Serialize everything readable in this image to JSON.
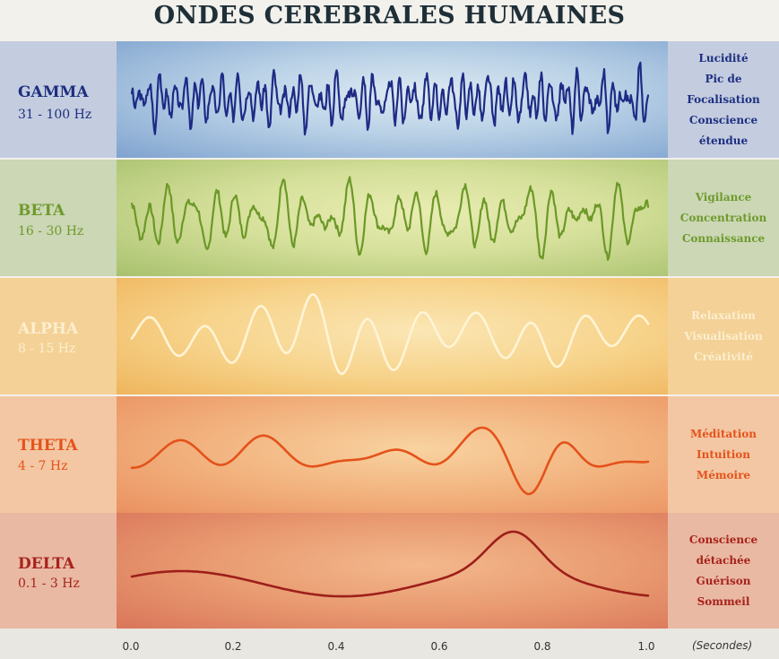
{
  "title": "ONDES CEREBRALES HUMAINES",
  "bands": [
    {
      "name": "GAMMA",
      "freq": "31 - 100 Hz",
      "traits": [
        "Lucidité",
        "Pic de",
        "Focalisation",
        "Conscience",
        "étendue"
      ],
      "color": "#1c2f80",
      "wave_color": "#1e2b85",
      "amp": 0.75,
      "seed": 3
    },
    {
      "name": "BETA",
      "freq": "16 - 30 Hz",
      "traits": [
        "Vigilance",
        "Concentration",
        "Connaissance"
      ],
      "color": "#6f9a2c",
      "wave_color": "#6c9828",
      "amp": 0.85,
      "seed": 7
    },
    {
      "name": "ALPHA",
      "freq": "8 - 15 Hz",
      "traits": [
        "Relaxation",
        "Visualisation",
        "Créativité"
      ],
      "color": "#fcefd0",
      "wave_color": "#fff4d6",
      "amp": 0.85,
      "seed": 11
    },
    {
      "name": "THETA",
      "freq": "4 - 7 Hz",
      "traits": [
        "Méditation",
        "Intuition",
        "Mémoire"
      ],
      "color": "#e5531c",
      "wave_color": "#e4521a",
      "amp": 0.8,
      "seed": 5
    },
    {
      "name": "DELTA",
      "freq": "0.1 - 3 Hz",
      "traits": [
        "Conscience",
        "détachée",
        "Guérison",
        "Sommeil"
      ],
      "color": "#a8221b",
      "wave_color": "#9d1f1a",
      "amp": 0.8,
      "seed": 2
    }
  ],
  "axis": {
    "ticks": [
      "0.0",
      "0.2",
      "0.4",
      "0.6",
      "0.8",
      "1.0"
    ],
    "unit": "(Secondes)"
  }
}
